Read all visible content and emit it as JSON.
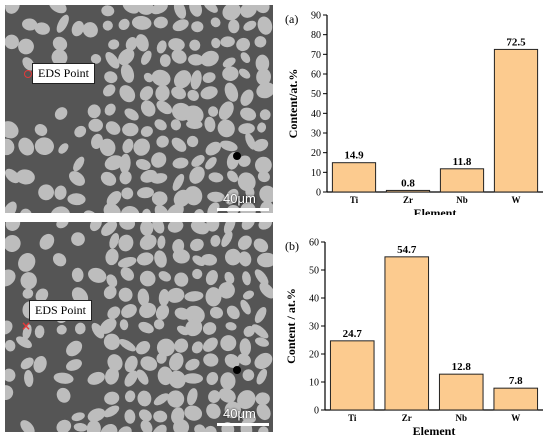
{
  "micrographs": [
    {
      "eds_label": "EDS Point",
      "scale_label": "40μm"
    },
    {
      "eds_label": "EDS Point",
      "scale_label": "40μm"
    }
  ],
  "colors": {
    "bar_fill": "#FCCB8F",
    "bar_stroke": "#222222",
    "matrix": "#555555",
    "particle": "#BDBDBD"
  },
  "chart_data": [
    {
      "type": "bar",
      "panel_label": "(a)",
      "categories": [
        "Ti",
        "Zr",
        "Nb",
        "W"
      ],
      "values": [
        14.9,
        0.8,
        11.8,
        72.5
      ],
      "value_labels": [
        "14.9",
        "0.8",
        "11.8",
        "72.5"
      ],
      "xlabel": "Element",
      "ylabel": "Content/at.%",
      "ylim": [
        0,
        90
      ],
      "yticks": [
        0,
        10,
        20,
        30,
        40,
        50,
        60,
        70,
        80,
        90
      ]
    },
    {
      "type": "bar",
      "panel_label": "(b)",
      "categories": [
        "Ti",
        "Zr",
        "Nb",
        "W"
      ],
      "values": [
        24.7,
        54.7,
        12.8,
        7.8
      ],
      "value_labels": [
        "24.7",
        "54.7",
        "12.8",
        "7.8"
      ],
      "xlabel": "Element",
      "ylabel": "Content / at.%",
      "ylim": [
        0,
        60
      ],
      "yticks": [
        0,
        10,
        20,
        30,
        40,
        50,
        60
      ]
    }
  ]
}
